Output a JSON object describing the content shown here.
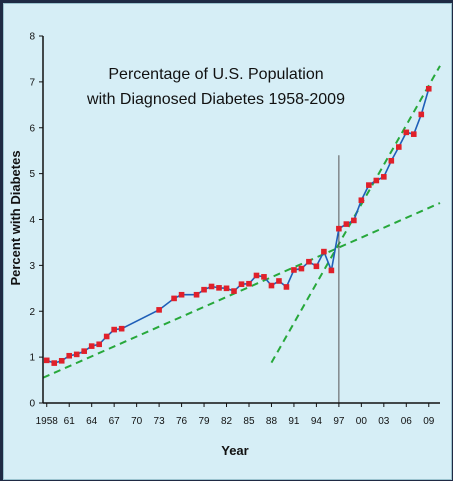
{
  "chart_data": {
    "type": "line",
    "title_lines": [
      "Percentage of U.S. Population",
      "with Diagnosed Diabetes 1958-2009"
    ],
    "xlabel": "Year",
    "ylabel": "Percent with Diabetes",
    "xlim": [
      1957.5,
      2010.5
    ],
    "ylim": [
      0,
      8
    ],
    "y_ticks": [
      0,
      1,
      2,
      3,
      4,
      5,
      6,
      7,
      8
    ],
    "x_ticks": [
      {
        "value": 1958,
        "label": "1958"
      },
      {
        "value": 1961,
        "label": "61"
      },
      {
        "value": 1964,
        "label": "64"
      },
      {
        "value": 1967,
        "label": "67"
      },
      {
        "value": 1970,
        "label": "70"
      },
      {
        "value": 1973,
        "label": "73"
      },
      {
        "value": 1976,
        "label": "76"
      },
      {
        "value": 1979,
        "label": "79"
      },
      {
        "value": 1982,
        "label": "82"
      },
      {
        "value": 1985,
        "label": "85"
      },
      {
        "value": 1988,
        "label": "88"
      },
      {
        "value": 1991,
        "label": "91"
      },
      {
        "value": 1994,
        "label": "94"
      },
      {
        "value": 1997,
        "label": "97"
      },
      {
        "value": 2000,
        "label": "00"
      },
      {
        "value": 2003,
        "label": "03"
      },
      {
        "value": 2006,
        "label": "06"
      },
      {
        "value": 2009,
        "label": "09"
      }
    ],
    "grid": false,
    "series": [
      {
        "color": "#1f5fb8",
        "marker_color": "#e0202a",
        "x": [
          1958,
          1959,
          1960,
          1961,
          1962,
          1963,
          1964,
          1965,
          1966,
          1967,
          1968,
          1973,
          1975,
          1976,
          1978,
          1979,
          1980,
          1981,
          1982,
          1983,
          1984,
          1985,
          1986,
          1987,
          1988,
          1989,
          1990,
          1991,
          1992,
          1993,
          1994,
          1995,
          1996,
          1997,
          1998,
          1999,
          2000,
          2001,
          2002,
          2003,
          2004,
          2005,
          2006,
          2007,
          2008,
          2009
        ],
        "y": [
          0.93,
          0.87,
          0.92,
          1.03,
          1.06,
          1.13,
          1.24,
          1.28,
          1.45,
          1.6,
          1.62,
          2.03,
          2.28,
          2.36,
          2.36,
          2.47,
          2.54,
          2.51,
          2.5,
          2.44,
          2.59,
          2.6,
          2.78,
          2.75,
          2.56,
          2.66,
          2.53,
          2.9,
          2.93,
          3.08,
          2.98,
          3.3,
          2.89,
          3.8,
          3.9,
          3.98,
          4.42,
          4.75,
          4.85,
          4.93,
          5.28,
          5.58,
          5.9,
          5.86,
          6.29,
          6.85
        ]
      }
    ],
    "trend_lines": [
      {
        "color": "#27a83b",
        "x": [
          1957.5,
          2010.5
        ],
        "y": [
          0.55,
          4.36
        ]
      },
      {
        "color": "#27a83b",
        "x": [
          1988.0,
          2010.5
        ],
        "y": [
          0.88,
          7.35
        ]
      }
    ],
    "reference_line": {
      "color": "#555555",
      "x": 1997.0,
      "y": [
        0,
        5.4
      ]
    }
  }
}
